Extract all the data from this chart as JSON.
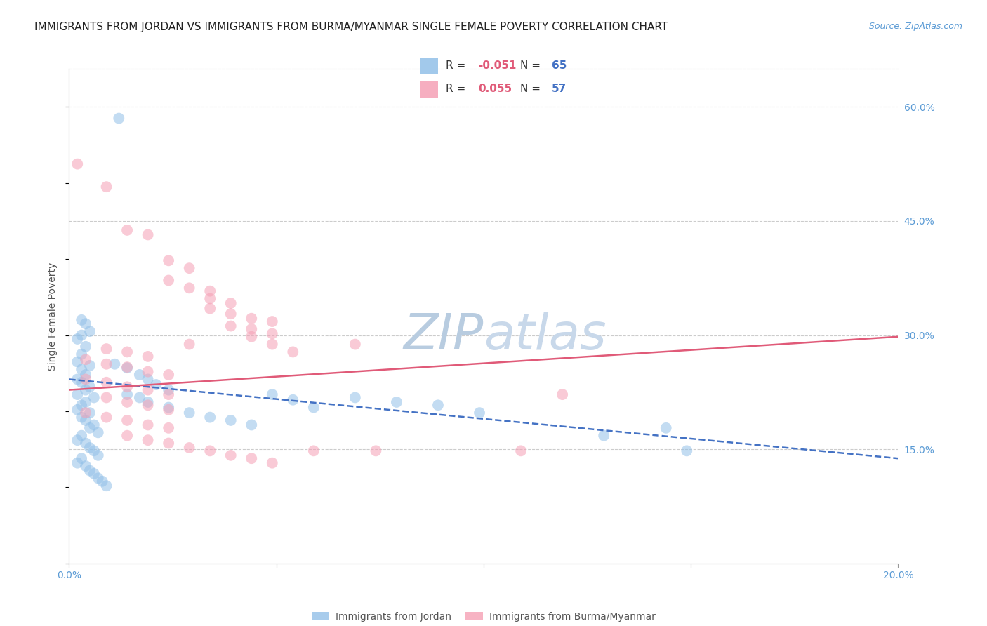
{
  "title": "IMMIGRANTS FROM JORDAN VS IMMIGRANTS FROM BURMA/MYANMAR SINGLE FEMALE POVERTY CORRELATION CHART",
  "source": "Source: ZipAtlas.com",
  "ylabel": "Single Female Poverty",
  "xlim": [
    0.0,
    0.2
  ],
  "ylim": [
    0.0,
    0.65
  ],
  "xticks": [
    0.0,
    0.05,
    0.1,
    0.15,
    0.2
  ],
  "xtick_labels": [
    "0.0%",
    "",
    "",
    "",
    "20.0%"
  ],
  "ytick_labels_right": [
    "60.0%",
    "45.0%",
    "30.0%",
    "15.0%"
  ],
  "ytick_positions_right": [
    0.6,
    0.45,
    0.3,
    0.15
  ],
  "legend_r_values": [
    "-0.051",
    "0.055"
  ],
  "legend_n_values": [
    "65",
    "57"
  ],
  "watermark_zip": "ZIP",
  "watermark_atlas": "atlas",
  "jordan_color": "#92C0E8",
  "burma_color": "#F5A0B5",
  "jordan_scatter": [
    [
      0.012,
      0.585
    ],
    [
      0.003,
      0.32
    ],
    [
      0.004,
      0.315
    ],
    [
      0.005,
      0.305
    ],
    [
      0.003,
      0.3
    ],
    [
      0.002,
      0.295
    ],
    [
      0.004,
      0.285
    ],
    [
      0.003,
      0.275
    ],
    [
      0.002,
      0.265
    ],
    [
      0.005,
      0.26
    ],
    [
      0.003,
      0.255
    ],
    [
      0.004,
      0.248
    ],
    [
      0.002,
      0.242
    ],
    [
      0.003,
      0.238
    ],
    [
      0.005,
      0.232
    ],
    [
      0.004,
      0.228
    ],
    [
      0.002,
      0.222
    ],
    [
      0.006,
      0.218
    ],
    [
      0.004,
      0.212
    ],
    [
      0.003,
      0.208
    ],
    [
      0.002,
      0.202
    ],
    [
      0.005,
      0.198
    ],
    [
      0.003,
      0.192
    ],
    [
      0.004,
      0.188
    ],
    [
      0.006,
      0.182
    ],
    [
      0.005,
      0.178
    ],
    [
      0.007,
      0.172
    ],
    [
      0.003,
      0.168
    ],
    [
      0.002,
      0.162
    ],
    [
      0.004,
      0.158
    ],
    [
      0.005,
      0.152
    ],
    [
      0.006,
      0.148
    ],
    [
      0.007,
      0.142
    ],
    [
      0.003,
      0.138
    ],
    [
      0.002,
      0.132
    ],
    [
      0.004,
      0.128
    ],
    [
      0.005,
      0.122
    ],
    [
      0.006,
      0.118
    ],
    [
      0.007,
      0.112
    ],
    [
      0.008,
      0.108
    ],
    [
      0.009,
      0.102
    ],
    [
      0.011,
      0.262
    ],
    [
      0.014,
      0.257
    ],
    [
      0.017,
      0.248
    ],
    [
      0.019,
      0.242
    ],
    [
      0.021,
      0.235
    ],
    [
      0.024,
      0.228
    ],
    [
      0.014,
      0.222
    ],
    [
      0.017,
      0.218
    ],
    [
      0.019,
      0.212
    ],
    [
      0.024,
      0.205
    ],
    [
      0.029,
      0.198
    ],
    [
      0.034,
      0.192
    ],
    [
      0.039,
      0.188
    ],
    [
      0.044,
      0.182
    ],
    [
      0.049,
      0.222
    ],
    [
      0.054,
      0.215
    ],
    [
      0.059,
      0.205
    ],
    [
      0.069,
      0.218
    ],
    [
      0.079,
      0.212
    ],
    [
      0.089,
      0.208
    ],
    [
      0.099,
      0.198
    ],
    [
      0.129,
      0.168
    ],
    [
      0.144,
      0.178
    ],
    [
      0.149,
      0.148
    ]
  ],
  "burma_scatter": [
    [
      0.002,
      0.525
    ],
    [
      0.009,
      0.495
    ],
    [
      0.014,
      0.438
    ],
    [
      0.019,
      0.432
    ],
    [
      0.024,
      0.398
    ],
    [
      0.029,
      0.388
    ],
    [
      0.024,
      0.372
    ],
    [
      0.029,
      0.362
    ],
    [
      0.034,
      0.358
    ],
    [
      0.034,
      0.348
    ],
    [
      0.039,
      0.342
    ],
    [
      0.034,
      0.335
    ],
    [
      0.039,
      0.328
    ],
    [
      0.044,
      0.322
    ],
    [
      0.049,
      0.318
    ],
    [
      0.039,
      0.312
    ],
    [
      0.044,
      0.308
    ],
    [
      0.049,
      0.302
    ],
    [
      0.044,
      0.298
    ],
    [
      0.049,
      0.288
    ],
    [
      0.009,
      0.282
    ],
    [
      0.014,
      0.278
    ],
    [
      0.019,
      0.272
    ],
    [
      0.004,
      0.268
    ],
    [
      0.009,
      0.262
    ],
    [
      0.014,
      0.258
    ],
    [
      0.019,
      0.252
    ],
    [
      0.024,
      0.248
    ],
    [
      0.004,
      0.242
    ],
    [
      0.009,
      0.238
    ],
    [
      0.014,
      0.232
    ],
    [
      0.019,
      0.228
    ],
    [
      0.024,
      0.222
    ],
    [
      0.009,
      0.218
    ],
    [
      0.014,
      0.212
    ],
    [
      0.019,
      0.208
    ],
    [
      0.024,
      0.202
    ],
    [
      0.004,
      0.198
    ],
    [
      0.009,
      0.192
    ],
    [
      0.014,
      0.188
    ],
    [
      0.019,
      0.182
    ],
    [
      0.024,
      0.178
    ],
    [
      0.014,
      0.168
    ],
    [
      0.019,
      0.162
    ],
    [
      0.024,
      0.158
    ],
    [
      0.029,
      0.152
    ],
    [
      0.034,
      0.148
    ],
    [
      0.039,
      0.142
    ],
    [
      0.044,
      0.138
    ],
    [
      0.049,
      0.132
    ],
    [
      0.119,
      0.222
    ],
    [
      0.059,
      0.148
    ],
    [
      0.074,
      0.148
    ],
    [
      0.109,
      0.148
    ],
    [
      0.069,
      0.288
    ],
    [
      0.029,
      0.288
    ],
    [
      0.054,
      0.278
    ]
  ],
  "jordan_trendline": [
    [
      0.0,
      0.242
    ],
    [
      0.2,
      0.138
    ]
  ],
  "burma_trendline": [
    [
      0.0,
      0.228
    ],
    [
      0.2,
      0.298
    ]
  ],
  "jordan_trend_color": "#4472C4",
  "burma_trend_color": "#E05A78",
  "background_color": "#FFFFFF",
  "grid_color": "#CCCCCC",
  "axis_color": "#999999",
  "title_fontsize": 11,
  "source_fontsize": 9,
  "label_fontsize": 10,
  "tick_fontsize": 10,
  "watermark_color_zip": "#B8CCE0",
  "watermark_color_atlas": "#C8D8EA",
  "watermark_fontsize": 52
}
